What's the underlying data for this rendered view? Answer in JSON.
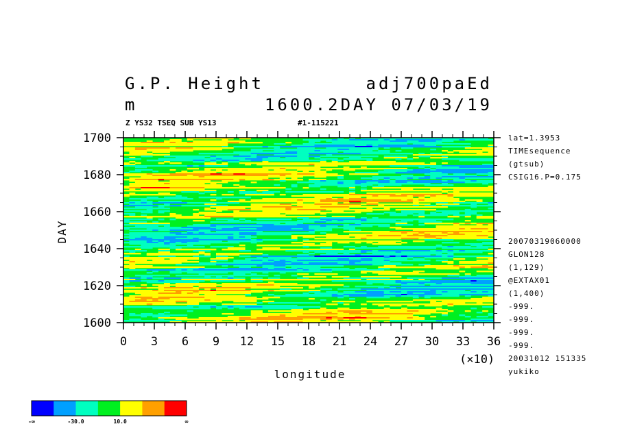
{
  "chart_data": {
    "type": "heatmap",
    "title_left": "G.P. Height",
    "units": "m",
    "title_right": "adj700paEd",
    "title_right2": "1600.2DAY 07/03/19",
    "subtitle_left": "Z YS32 TSEQ SUB YS13",
    "subtitle_right": "#1-115221",
    "xlabel": "longitude",
    "xscale_note": "(×10)",
    "ylabel": "DAY",
    "xlim": [
      0,
      36
    ],
    "ylim": [
      1600,
      1700
    ],
    "x_ticks": [
      "0",
      "3",
      "6",
      "9",
      "12",
      "15",
      "18",
      "21",
      "24",
      "27",
      "30",
      "33",
      "36"
    ],
    "y_ticks": [
      "1600",
      "1620",
      "1640",
      "1660",
      "1680",
      "1700"
    ],
    "info_top": [
      "lat=1.3953",
      "TIMEsequence",
      "(gtsub)",
      "CSIG16.P=0.175"
    ],
    "info_bottom": [
      "20070319060000",
      "GLON128",
      "(1,129)",
      "@EXTAX01",
      "(1,400)",
      "-999.",
      "-999.",
      "-999.",
      "-999.",
      "20031012 151335",
      "yukiko"
    ],
    "colorbar": {
      "colors": [
        "#0000ff",
        "#00a0ff",
        "#00ffc0",
        "#00f020",
        "#ffff00",
        "#ffa000",
        "#ff0000"
      ],
      "labels": [
        "-∞",
        "-30.0",
        "10.0",
        "∞"
      ]
    }
  }
}
